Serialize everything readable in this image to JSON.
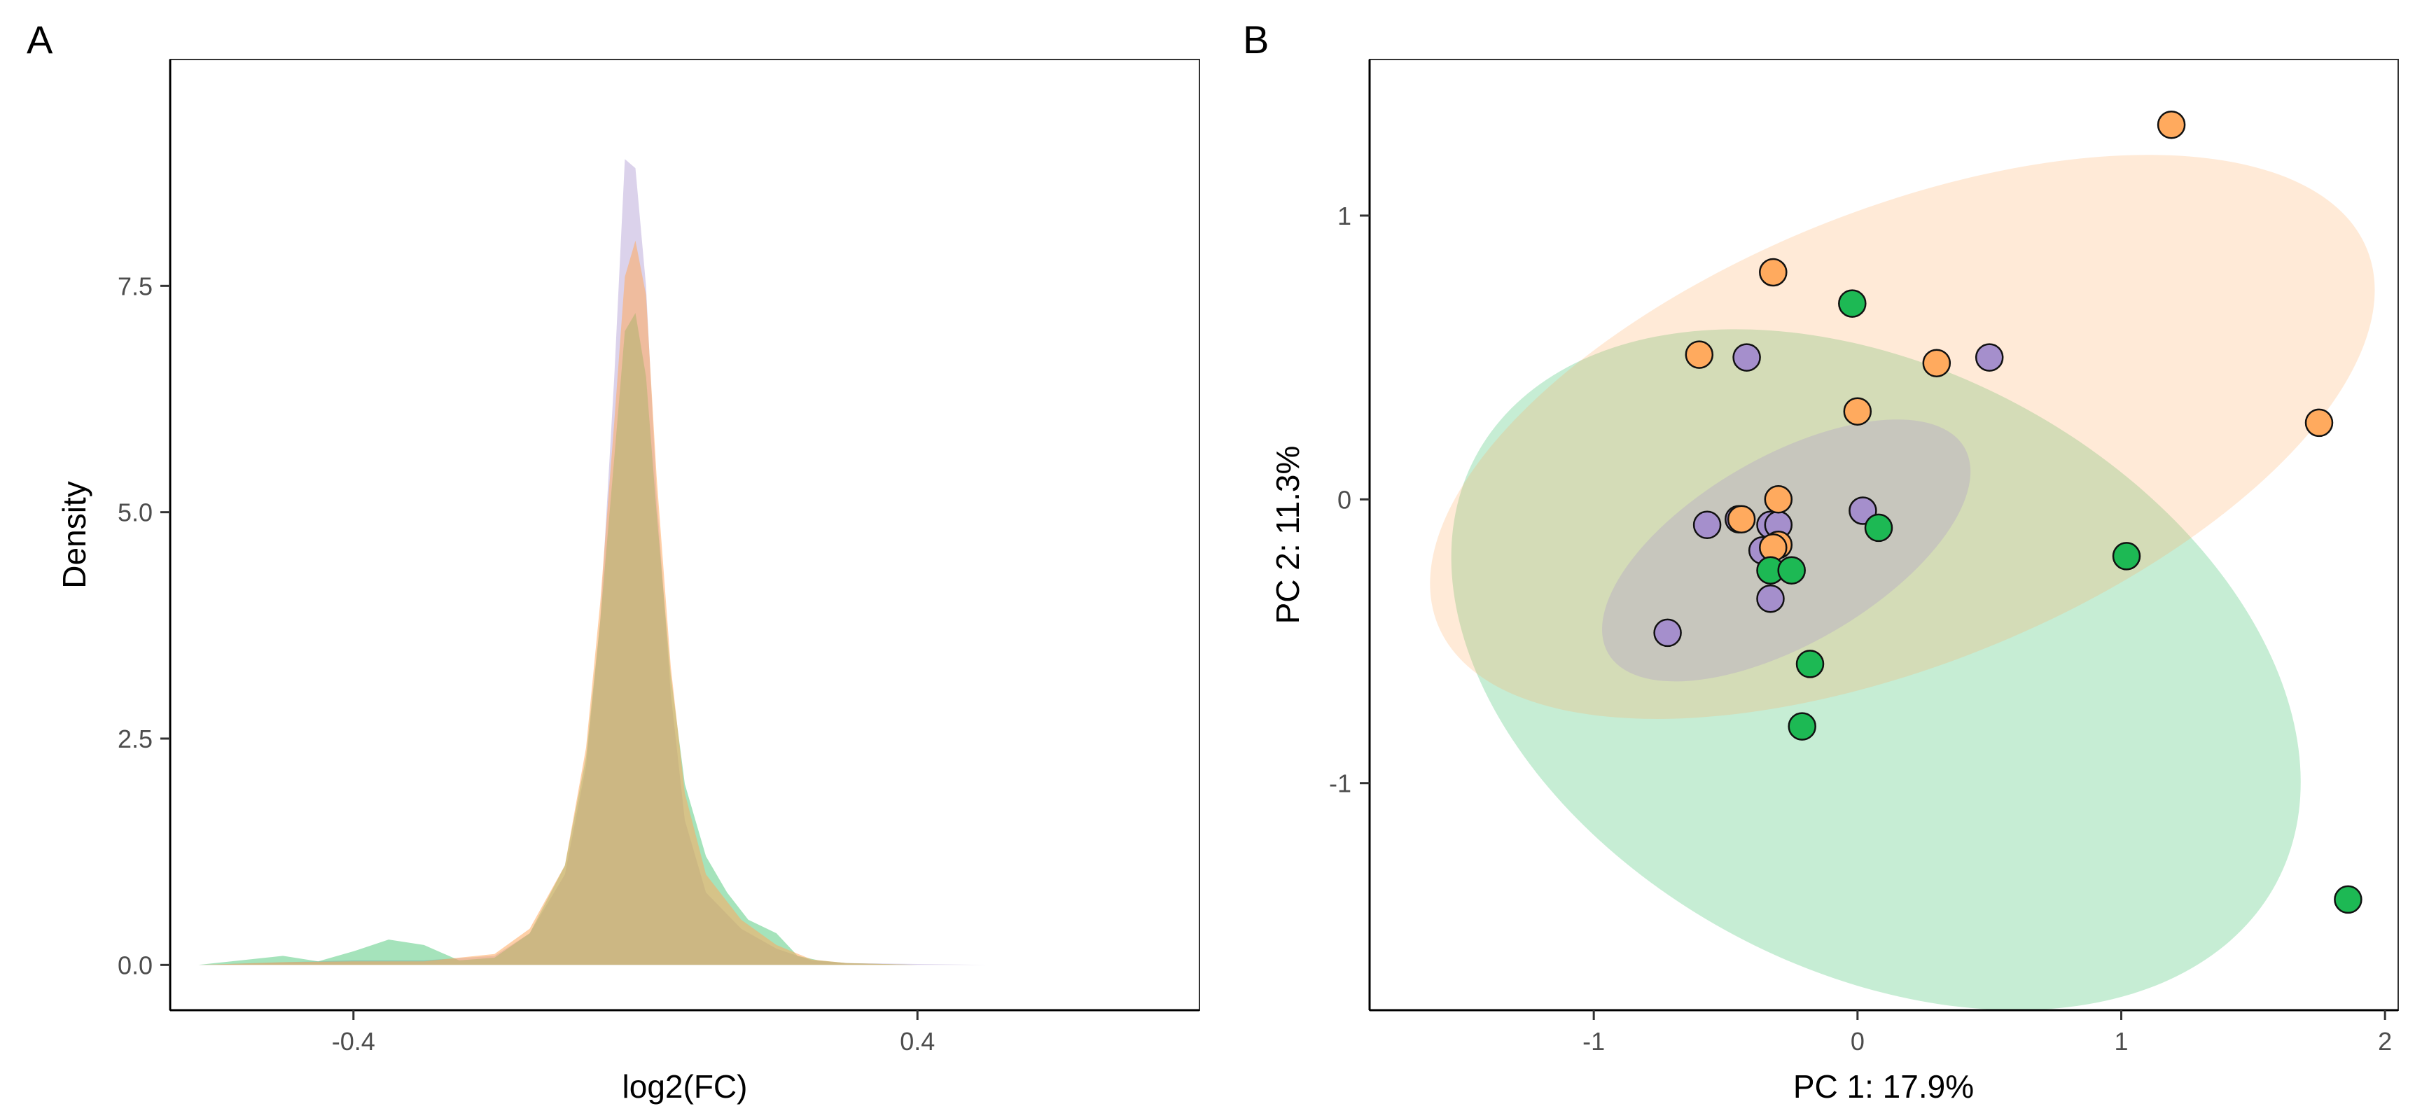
{
  "colors": {
    "purple": "#A58FCC",
    "orange": "#FFAA5E",
    "green": "#1DB954"
  },
  "chart_data": [
    {
      "panel": "A",
      "type": "area",
      "subtype": "density",
      "title": "",
      "xlabel": "log2(FC)",
      "ylabel": "Density",
      "xlim": [
        -0.66,
        0.8
      ],
      "ylim": [
        -0.5,
        10.0
      ],
      "xticks": [
        -0.4,
        0.4
      ],
      "xtick_labels": [
        "-0.4",
        "0.4"
      ],
      "yticks": [
        0.0,
        2.5,
        5.0,
        7.5
      ],
      "ytick_labels": [
        "0.0",
        "2.5",
        "5.0",
        "7.5"
      ],
      "legend": "none",
      "series": [
        {
          "name": "purple group",
          "color_key": "purple",
          "x": [
            -0.62,
            -0.5,
            -0.4,
            -0.3,
            -0.2,
            -0.15,
            -0.1,
            -0.07,
            -0.05,
            -0.03,
            -0.015,
            0.0,
            0.015,
            0.03,
            0.05,
            0.07,
            0.1,
            0.15,
            0.2,
            0.25,
            0.3,
            0.4,
            0.5,
            0.58
          ],
          "y": [
            0.0,
            0.03,
            0.05,
            0.05,
            0.1,
            0.35,
            1.0,
            2.2,
            3.8,
            6.5,
            8.9,
            8.8,
            7.5,
            5.2,
            3.0,
            1.6,
            0.8,
            0.4,
            0.18,
            0.05,
            0.02,
            0.01,
            0.0,
            0.0
          ]
        },
        {
          "name": "green group",
          "color_key": "green",
          "x": [
            -0.62,
            -0.5,
            -0.45,
            -0.4,
            -0.35,
            -0.3,
            -0.25,
            -0.2,
            -0.15,
            -0.1,
            -0.07,
            -0.05,
            -0.03,
            -0.015,
            0.0,
            0.015,
            0.03,
            0.05,
            0.07,
            0.1,
            0.13,
            0.16,
            0.2,
            0.23,
            0.26,
            0.3,
            0.4,
            0.5
          ],
          "y": [
            0.0,
            0.1,
            0.04,
            0.15,
            0.28,
            0.22,
            0.05,
            0.08,
            0.35,
            1.1,
            2.3,
            3.8,
            5.6,
            7.0,
            7.2,
            6.5,
            5.0,
            3.2,
            2.0,
            1.2,
            0.8,
            0.5,
            0.35,
            0.1,
            0.05,
            0.02,
            0.0,
            0.0
          ]
        },
        {
          "name": "orange group",
          "color_key": "orange",
          "x": [
            -0.62,
            -0.5,
            -0.4,
            -0.3,
            -0.2,
            -0.15,
            -0.1,
            -0.07,
            -0.05,
            -0.03,
            -0.015,
            0.0,
            0.015,
            0.03,
            0.05,
            0.07,
            0.1,
            0.15,
            0.2,
            0.25,
            0.3,
            0.4,
            0.5
          ],
          "y": [
            0.0,
            0.03,
            0.04,
            0.04,
            0.12,
            0.4,
            1.1,
            2.4,
            4.0,
            6.0,
            7.6,
            8.0,
            7.4,
            5.4,
            3.3,
            1.9,
            1.0,
            0.5,
            0.22,
            0.06,
            0.02,
            0.0,
            0.0
          ]
        }
      ]
    },
    {
      "panel": "B",
      "type": "scatter",
      "title": "",
      "xlabel": "PC 1: 17.9%",
      "ylabel": "PC 2: 11.3%",
      "xlim": [
        -1.85,
        2.05
      ],
      "ylim": [
        -1.8,
        1.55
      ],
      "xticks": [
        -1,
        0,
        1,
        2
      ],
      "xtick_labels": [
        "-1",
        "0",
        "1",
        "2"
      ],
      "yticks": [
        -1,
        0,
        1
      ],
      "ytick_labels": [
        "-1",
        "0",
        "1"
      ],
      "legend": "none",
      "ellipses": [
        {
          "name": "green ellipse",
          "color_key": "green",
          "cx": 0.07,
          "cy": -0.6,
          "rx": 1.72,
          "ry": 1.06,
          "angle_deg": -28
        },
        {
          "name": "orange ellipse",
          "color_key": "orange",
          "cx": 0.17,
          "cy": 0.22,
          "rx": 1.9,
          "ry": 0.8,
          "angle_deg": 22
        },
        {
          "name": "purple ellipse",
          "color_key": "purple",
          "cx": -0.27,
          "cy": -0.18,
          "rx": 0.78,
          "ry": 0.33,
          "angle_deg": 30
        }
      ],
      "series": [
        {
          "name": "purple group",
          "color_key": "purple",
          "points": [
            [
              -0.42,
              0.5
            ],
            [
              0.5,
              0.5
            ],
            [
              -0.72,
              -0.47
            ],
            [
              -0.57,
              -0.09
            ],
            [
              -0.45,
              -0.07
            ],
            [
              -0.36,
              -0.18
            ],
            [
              -0.33,
              -0.09
            ],
            [
              -0.3,
              -0.09
            ],
            [
              -0.33,
              -0.35
            ],
            [
              0.02,
              -0.04
            ]
          ]
        },
        {
          "name": "orange group",
          "color_key": "orange",
          "points": [
            [
              1.19,
              1.32
            ],
            [
              -0.32,
              0.8
            ],
            [
              -0.6,
              0.51
            ],
            [
              0.3,
              0.48
            ],
            [
              0.0,
              0.31
            ],
            [
              1.75,
              0.27
            ],
            [
              -0.3,
              0.0
            ],
            [
              -0.44,
              -0.07
            ],
            [
              -0.3,
              -0.16
            ],
            [
              -0.32,
              -0.17
            ]
          ]
        },
        {
          "name": "green group",
          "color_key": "green",
          "points": [
            [
              -0.02,
              0.69
            ],
            [
              0.08,
              -0.1
            ],
            [
              -0.33,
              -0.25
            ],
            [
              -0.25,
              -0.25
            ],
            [
              1.02,
              -0.2
            ],
            [
              -0.18,
              -0.58
            ],
            [
              -0.21,
              -0.8
            ],
            [
              1.86,
              -1.41
            ]
          ]
        }
      ]
    }
  ]
}
